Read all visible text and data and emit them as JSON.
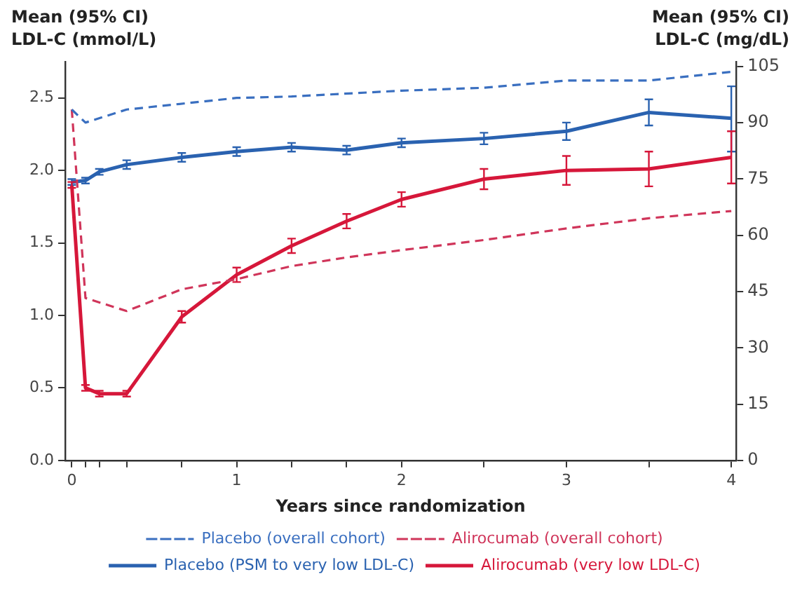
{
  "chart_data": {
    "type": "line",
    "xlabel": "Years since randomization",
    "ylabel": "Mean (95% CI) LDL-C (mmol/L)",
    "y2label": "Mean (95% CI) LDL-C (mg/dL)",
    "xlim": [
      -0.04,
      4.03
    ],
    "xticks": [
      0,
      {
        "value": 0.083,
        "label": null
      },
      {
        "value": 0.167,
        "label": null
      },
      {
        "value": 0.333,
        "label": null
      },
      {
        "value": 0.667,
        "label": null
      },
      1,
      {
        "value": 1.333,
        "label": null
      },
      {
        "value": 1.667,
        "label": null
      },
      2,
      {
        "value": 2.5,
        "label": null
      },
      3,
      {
        "value": 3.5,
        "label": null
      },
      4
    ],
    "ylim": [
      0,
      2.75
    ],
    "yticks": [
      {
        "value": 0,
        "label": "0.0"
      },
      0.5,
      {
        "value": 1,
        "label": "1.0"
      },
      1.5,
      {
        "value": 2,
        "label": "2.0"
      },
      2.5
    ],
    "y2lim": [
      0,
      106.3
    ],
    "y2ticks": [
      0,
      15,
      30,
      45,
      60,
      75,
      90,
      105
    ],
    "grid": false,
    "legend": "bottom",
    "series": [
      {
        "name": "Placebo (overall cohort)",
        "color": "#3a6fc0",
        "line_style": "dashed",
        "x": [
          0,
          0.083,
          0.333,
          1,
          1.333,
          2,
          2.5,
          3,
          3.5,
          4
        ],
        "values": [
          2.42,
          2.33,
          2.42,
          2.5,
          2.51,
          2.55,
          2.57,
          2.62,
          2.62,
          2.68
        ]
      },
      {
        "name": "Alirocumab (overall cohort)",
        "color": "#d0355a",
        "line_style": "dashed",
        "x": [
          0,
          0.083,
          0.333,
          0.667,
          1,
          1.333,
          1.667,
          2,
          2.5,
          3,
          3.5,
          4
        ],
        "values": [
          2.42,
          1.12,
          1.03,
          1.18,
          1.25,
          1.34,
          1.4,
          1.45,
          1.52,
          1.6,
          1.67,
          1.72
        ]
      },
      {
        "name": "Placebo (PSM to very low LDL-C)",
        "color": "#2a62b0",
        "line_style": "solid",
        "x": [
          0,
          0.083,
          0.167,
          0.333,
          0.667,
          1,
          1.333,
          1.667,
          2,
          2.5,
          3,
          3.5,
          4
        ],
        "values": [
          1.92,
          1.93,
          1.99,
          2.04,
          2.09,
          2.13,
          2.16,
          2.14,
          2.19,
          2.22,
          2.27,
          2.4,
          2.36
        ],
        "errors": [
          0.02,
          0.02,
          0.02,
          0.03,
          0.03,
          0.03,
          0.03,
          0.03,
          0.03,
          0.04,
          0.06,
          0.09,
          [
            2.13,
            2.58
          ]
        ]
      },
      {
        "name": "Alirocumab (very low LDL-C)",
        "color": "#d6173a",
        "line_style": "solid",
        "x": [
          0,
          0.083,
          0.167,
          0.333,
          0.667,
          1,
          1.333,
          1.667,
          2,
          2.5,
          3,
          3.5,
          4
        ],
        "values": [
          1.9,
          0.5,
          0.46,
          0.46,
          0.99,
          1.28,
          1.48,
          1.65,
          1.8,
          1.94,
          2.0,
          2.01,
          2.09
        ],
        "errors": [
          0.02,
          0.02,
          0.02,
          0.02,
          0.04,
          0.05,
          0.05,
          0.05,
          0.05,
          0.07,
          0.1,
          0.12,
          [
            1.91,
            2.27
          ]
        ]
      }
    ]
  }
}
